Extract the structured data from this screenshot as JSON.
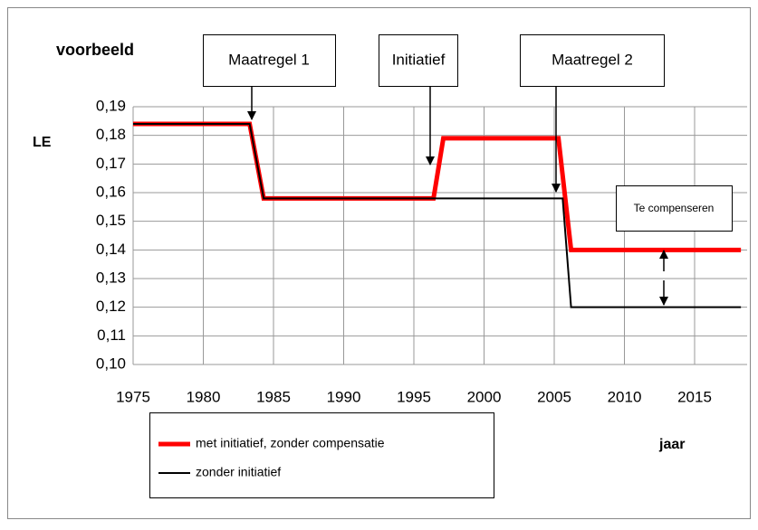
{
  "chart_data": {
    "type": "line",
    "title": "voorbeeld",
    "y_label": "LE",
    "x_label": "jaar",
    "xlim": [
      1975,
      2019
    ],
    "xticks": [
      1975,
      1980,
      1985,
      1990,
      1995,
      2000,
      2005,
      2010,
      2015
    ],
    "ylim": [
      0.1,
      0.19
    ],
    "yticks": [
      {
        "value": 0.1,
        "label": "0,10"
      },
      {
        "value": 0.11,
        "label": "0,11"
      },
      {
        "value": 0.12,
        "label": "0,12"
      },
      {
        "value": 0.13,
        "label": "0,13"
      },
      {
        "value": 0.14,
        "label": "0,14"
      },
      {
        "value": 0.15,
        "label": "0,15"
      },
      {
        "value": 0.16,
        "label": "0,16"
      },
      {
        "value": 0.17,
        "label": "0,17"
      },
      {
        "value": 0.18,
        "label": "0,18"
      },
      {
        "value": 0.19,
        "label": "0,19"
      }
    ],
    "grid": true,
    "series": [
      {
        "name": "met initiatief, zonder compensatie",
        "color": "#ff0000",
        "width": 5,
        "x": [
          1975,
          1983.3,
          1984.3,
          1996.4,
          1997.1,
          2005.3,
          2006.2,
          2018.3
        ],
        "values": [
          0.184,
          0.184,
          0.158,
          0.158,
          0.179,
          0.179,
          0.14,
          0.14
        ]
      },
      {
        "name": "zonder initiatief",
        "color": "#000000",
        "width": 2,
        "x": [
          1975,
          1983.3,
          1984.3,
          2005.6,
          2006.2,
          2018.3
        ],
        "values": [
          0.184,
          0.184,
          0.158,
          0.158,
          0.12,
          0.12
        ]
      }
    ],
    "annotations": [
      "Maatregel 1",
      "Initiatief",
      "Maatregel 2",
      "Te compenseren"
    ]
  }
}
